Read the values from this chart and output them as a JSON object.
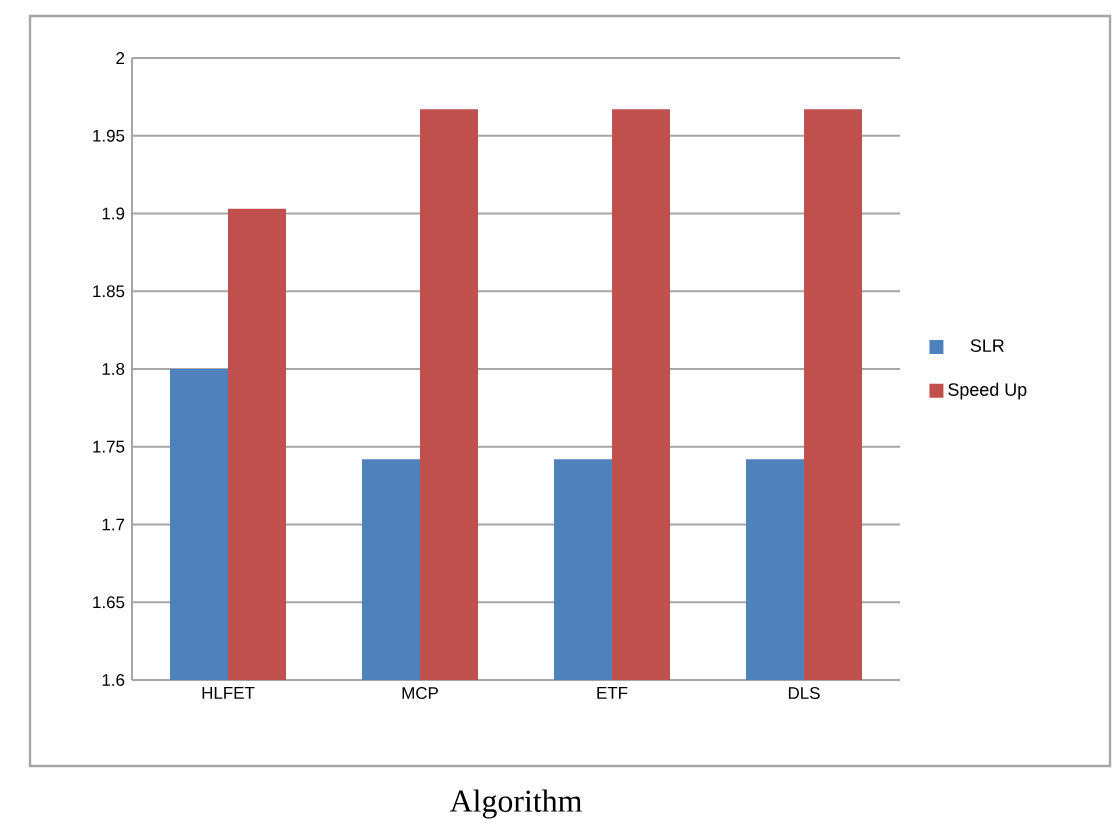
{
  "chart_data": {
    "type": "bar",
    "xlabel": "Algorithm",
    "categories": [
      "HLFET",
      "MCP",
      "ETF",
      "DLS"
    ],
    "series": [
      {
        "name": "SLR",
        "color": "#4f81bd",
        "values": [
          1.8,
          1.742,
          1.742,
          1.742
        ]
      },
      {
        "name": "Speed Up",
        "color": "#c0504d",
        "values": [
          1.903,
          1.967,
          1.967,
          1.967
        ]
      }
    ],
    "ylim": [
      1.6,
      2
    ],
    "yticks": [
      1.6,
      1.65,
      1.7,
      1.75,
      1.8,
      1.85,
      1.9,
      1.95,
      2
    ],
    "grid": "y",
    "legend": "right"
  }
}
